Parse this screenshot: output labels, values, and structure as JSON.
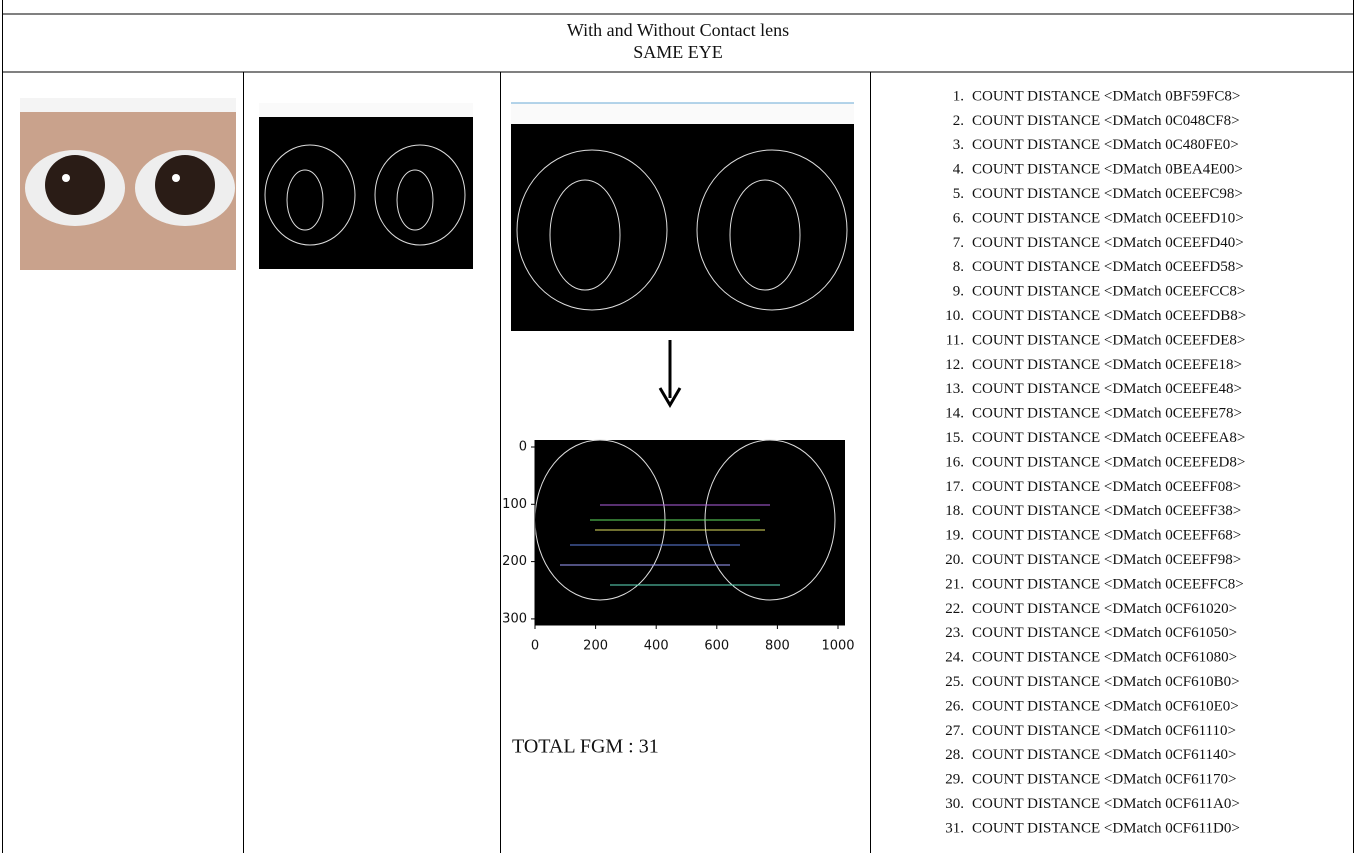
{
  "header": {
    "line1": "With and Without Contact lens",
    "line2": "SAME EYE"
  },
  "match_plot": {
    "yticks": [
      0,
      100,
      200,
      300
    ],
    "xticks": [
      0,
      200,
      400,
      600,
      800,
      1000
    ]
  },
  "total": "TOTAL FGM : 31",
  "matches": [
    {
      "n": "1.",
      "text": "COUNT DISTANCE <DMatch 0BF59FC8>"
    },
    {
      "n": "2.",
      "text": "COUNT DISTANCE <DMatch 0C048CF8>"
    },
    {
      "n": "3.",
      "text": "COUNT DISTANCE <DMatch 0C480FE0>"
    },
    {
      "n": "4.",
      "text": "COUNT DISTANCE <DMatch 0BEA4E00>"
    },
    {
      "n": "5.",
      "text": "COUNT DISTANCE <DMatch 0CEEFC98>"
    },
    {
      "n": "6.",
      "text": "COUNT DISTANCE <DMatch 0CEEFD10>"
    },
    {
      "n": "7.",
      "text": "COUNT DISTANCE <DMatch 0CEEFD40>"
    },
    {
      "n": "8.",
      "text": "COUNT DISTANCE <DMatch 0CEEFD58>"
    },
    {
      "n": "9.",
      "text": "COUNT DISTANCE <DMatch 0CEEFCC8>"
    },
    {
      "n": "10.",
      "text": "COUNT DISTANCE <DMatch 0CEEFDB8>"
    },
    {
      "n": "11.",
      "text": "COUNT DISTANCE <DMatch 0CEEFDE8>"
    },
    {
      "n": "12.",
      "text": "COUNT DISTANCE <DMatch 0CEEFE18>"
    },
    {
      "n": "13.",
      "text": "COUNT DISTANCE <DMatch 0CEEFE48>"
    },
    {
      "n": "14.",
      "text": "COUNT DISTANCE <DMatch 0CEEFE78>"
    },
    {
      "n": "15.",
      "text": "COUNT DISTANCE <DMatch 0CEEFEA8>"
    },
    {
      "n": "16.",
      "text": "COUNT DISTANCE <DMatch 0CEEFED8>"
    },
    {
      "n": "17.",
      "text": "COUNT DISTANCE <DMatch 0CEEFF08>"
    },
    {
      "n": "18.",
      "text": "COUNT DISTANCE <DMatch 0CEEFF38>"
    },
    {
      "n": "19.",
      "text": "COUNT DISTANCE <DMatch 0CEEFF68>"
    },
    {
      "n": "20.",
      "text": "COUNT DISTANCE <DMatch 0CEEFF98>"
    },
    {
      "n": "21.",
      "text": "COUNT DISTANCE <DMatch 0CEEFFC8>"
    },
    {
      "n": "22.",
      "text": "COUNT DISTANCE <DMatch 0CF61020>"
    },
    {
      "n": "23.",
      "text": "COUNT DISTANCE <DMatch 0CF61050>"
    },
    {
      "n": "24.",
      "text": "COUNT DISTANCE <DMatch 0CF61080>"
    },
    {
      "n": "25.",
      "text": "COUNT DISTANCE <DMatch 0CF610B0>"
    },
    {
      "n": "26.",
      "text": "COUNT DISTANCE <DMatch 0CF610E0>"
    },
    {
      "n": "27.",
      "text": "COUNT DISTANCE <DMatch 0CF61110>"
    },
    {
      "n": "28.",
      "text": "COUNT DISTANCE <DMatch 0CF61140>"
    },
    {
      "n": "29.",
      "text": "COUNT DISTANCE <DMatch 0CF61170>"
    },
    {
      "n": "30.",
      "text": "COUNT DISTANCE <DMatch 0CF611A0>"
    },
    {
      "n": "31.",
      "text": "COUNT DISTANCE <DMatch 0CF611D0>"
    }
  ]
}
